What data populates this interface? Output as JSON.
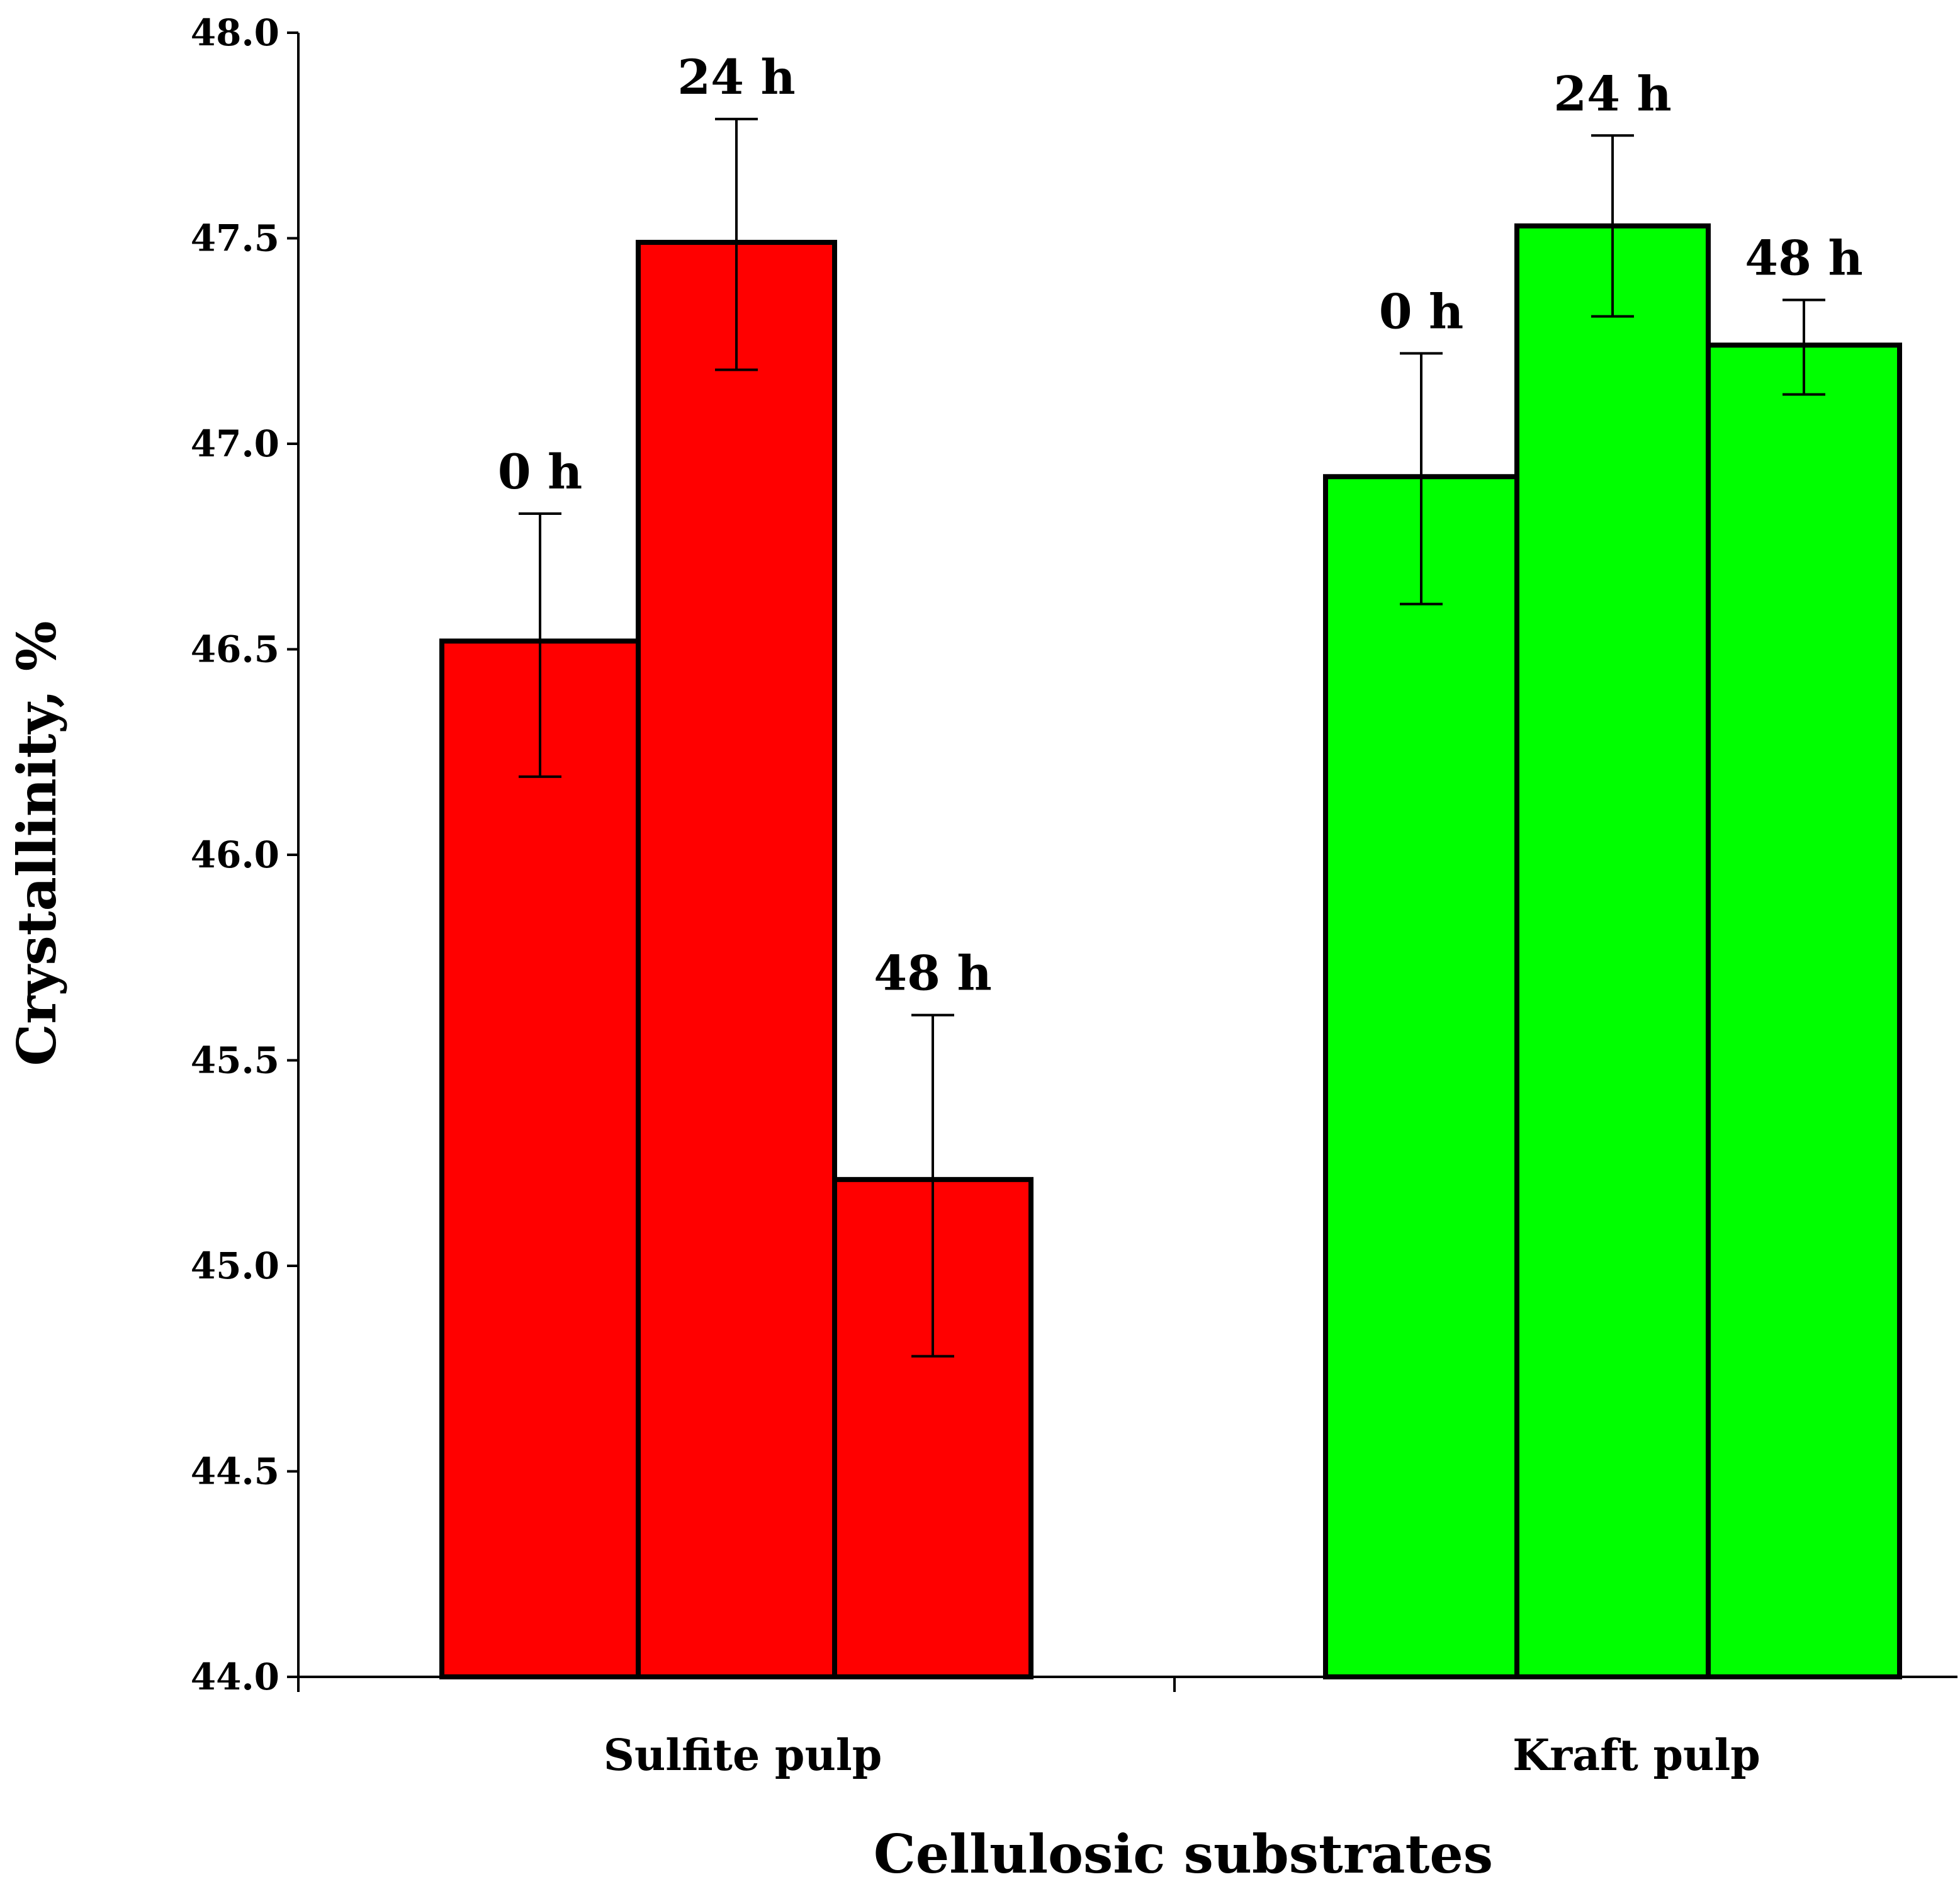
{
  "chart_data": {
    "type": "bar",
    "xlabel": "Cellulosic substrates",
    "ylabel": "Crystallinity, %",
    "ylim": [
      44.0,
      48.0
    ],
    "yticks": [
      "44.0",
      "44.5",
      "45.0",
      "45.5",
      "46.0",
      "46.5",
      "47.0",
      "47.5",
      "48.0"
    ],
    "categories": [
      "Sulfite pulp",
      "Kraft pulp"
    ],
    "groups": [
      {
        "category": "Sulfite pulp",
        "color": "#ff0000",
        "bars": [
          {
            "label": "0 h",
            "value": 46.52,
            "error_low": 46.19,
            "error_high": 46.83
          },
          {
            "label": "24 h",
            "value": 47.49,
            "error_low": 47.18,
            "error_high": 47.79
          },
          {
            "label": "48 h",
            "value": 45.21,
            "error_low": 44.78,
            "error_high": 45.61
          }
        ]
      },
      {
        "category": "Kraft pulp",
        "color": "#00ff00",
        "bars": [
          {
            "label": "0 h",
            "value": 46.92,
            "error_low": 46.61,
            "error_high": 47.22
          },
          {
            "label": "24 h",
            "value": 47.53,
            "error_low": 47.31,
            "error_high": 47.75
          },
          {
            "label": "48 h",
            "value": 47.24,
            "error_low": 47.12,
            "error_high": 47.35
          }
        ]
      }
    ],
    "grid": false,
    "legend": "none"
  }
}
